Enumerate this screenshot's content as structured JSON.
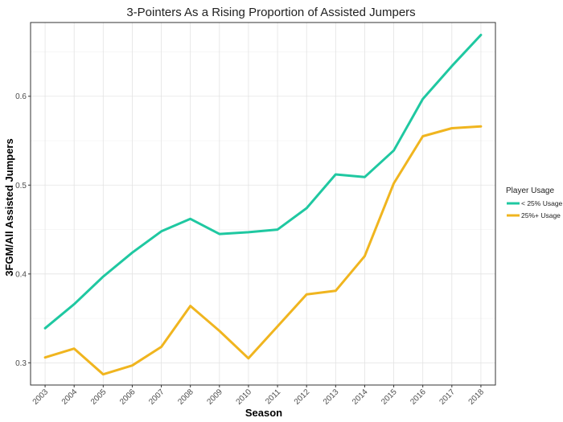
{
  "chart_data": {
    "type": "line",
    "title": "3-Pointers As a Rising Proportion of Assisted Jumpers",
    "xlabel": "Season",
    "ylabel": "3FGM/All Assisted Jumpers",
    "x": [
      "2003",
      "2004",
      "2005",
      "2006",
      "2007",
      "2008",
      "2009",
      "2010",
      "2011",
      "2012",
      "2013",
      "2014",
      "2015",
      "2016",
      "2017",
      "2018"
    ],
    "yticks": [
      0.3,
      0.4,
      0.5,
      0.6
    ],
    "ytick_labels": [
      "0.3",
      "0.4",
      "0.5",
      "0.6"
    ],
    "ylim": [
      0.275,
      0.683
    ],
    "grid": true,
    "legend": {
      "title": "Player Usage",
      "position": "right"
    },
    "series": [
      {
        "name": "< 25% Usage",
        "color": "#1fc8a1",
        "values": [
          0.339,
          0.366,
          0.397,
          0.424,
          0.448,
          0.462,
          0.445,
          0.447,
          0.45,
          0.474,
          0.512,
          0.509,
          0.539,
          0.597,
          0.634,
          0.669
        ]
      },
      {
        "name": "25%+ Usage",
        "color": "#f0b51f",
        "values": [
          0.306,
          0.316,
          0.287,
          0.297,
          0.318,
          0.364,
          0.336,
          0.305,
          0.341,
          0.377,
          0.381,
          0.42,
          0.502,
          0.555,
          0.564,
          0.566
        ]
      }
    ]
  }
}
